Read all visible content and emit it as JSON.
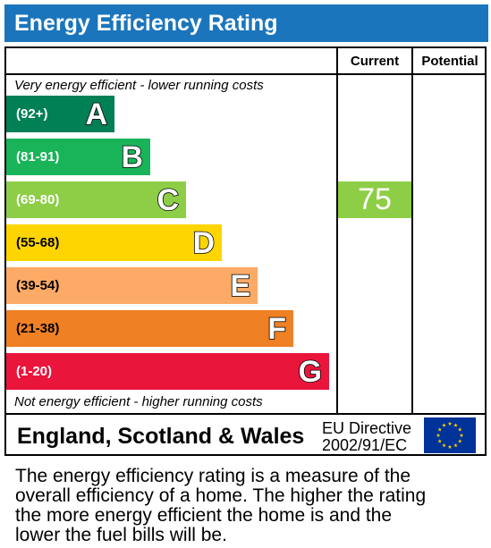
{
  "title": "Energy Efficiency Rating",
  "columns": {
    "current": "Current",
    "potential": "Potential"
  },
  "top_note": "Very energy efficient - lower running costs",
  "bottom_note": "Not energy efficient - higher running costs",
  "chart_data": {
    "type": "bar",
    "categories": [
      "A",
      "B",
      "C",
      "D",
      "E",
      "F",
      "G"
    ],
    "ranges": [
      "(92+)",
      "(81-91)",
      "(69-80)",
      "(55-68)",
      "(39-54)",
      "(21-38)",
      "(1-20)"
    ],
    "colors": [
      "#008054",
      "#19b459",
      "#8dce46",
      "#ffd500",
      "#fcaa65",
      "#ef8023",
      "#e9153b"
    ],
    "current": {
      "value": 75,
      "band": "C",
      "color": "#8dce46"
    },
    "potential": null
  },
  "footer": {
    "country": "England, Scotland & Wales",
    "directive_line1": "EU Directive",
    "directive_line2": "2002/91/EC",
    "flag_colors": {
      "background": "#003399",
      "stars": "#ffcc00"
    }
  },
  "description": [
    "The energy efficiency rating is a measure of the",
    "overall efficiency of a home. The higher the rating",
    "the more energy efficient the home is and the",
    "lower the fuel bills will be."
  ]
}
